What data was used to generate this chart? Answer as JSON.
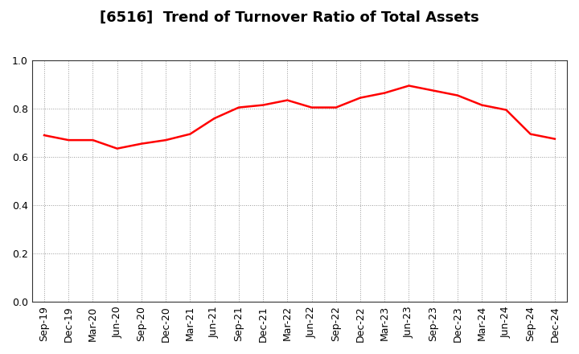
{
  "title": "[6516]  Trend of Turnover Ratio of Total Assets",
  "x_labels": [
    "Sep-19",
    "Dec-19",
    "Mar-20",
    "Jun-20",
    "Sep-20",
    "Dec-20",
    "Mar-21",
    "Jun-21",
    "Sep-21",
    "Dec-21",
    "Mar-22",
    "Jun-22",
    "Sep-22",
    "Dec-22",
    "Mar-23",
    "Jun-23",
    "Sep-23",
    "Dec-23",
    "Mar-24",
    "Jun-24",
    "Sep-24",
    "Dec-24"
  ],
  "values": [
    0.69,
    0.67,
    0.67,
    0.635,
    0.655,
    0.67,
    0.695,
    0.76,
    0.805,
    0.815,
    0.835,
    0.805,
    0.805,
    0.845,
    0.865,
    0.895,
    0.875,
    0.855,
    0.815,
    0.795,
    0.695,
    0.675
  ],
  "line_color": "#ff0000",
  "line_width": 1.8,
  "ylim": [
    0.0,
    1.0
  ],
  "yticks": [
    0.0,
    0.2,
    0.4,
    0.6,
    0.8,
    1.0
  ],
  "grid_color": "#999999",
  "bg_color": "#ffffff",
  "plot_bg_color": "#ffffff",
  "title_fontsize": 13,
  "tick_fontsize": 9,
  "spine_color": "#333333"
}
